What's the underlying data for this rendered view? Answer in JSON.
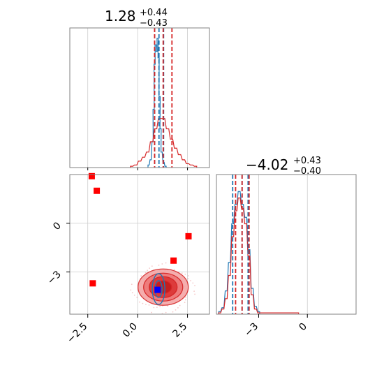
{
  "chart_data": {
    "type": "corner",
    "parameters": [
      "",
      ""
    ],
    "titles": [
      {
        "median": "1.28",
        "plus": "+0.44",
        "minus": "−0.43"
      },
      {
        "median": "−4.02",
        "plus": "+0.43",
        "minus": "−0.40"
      }
    ],
    "x_ticks": {
      "param1": {
        "values": [
          -2.5,
          0.0,
          2.5
        ],
        "labels": [
          "−2.5",
          "0.0",
          "2.5"
        ]
      },
      "param2": {
        "values": [
          -3,
          0
        ],
        "labels": [
          "−3",
          "0"
        ]
      }
    },
    "y_ticks": {
      "param2": {
        "values": [
          0,
          -3
        ],
        "labels": [
          "0",
          "−3"
        ]
      }
    },
    "ranges": {
      "param1": [
        -3.4,
        3.6
      ],
      "param2": [
        -5.6,
        3.0
      ]
    },
    "series": [
      {
        "color": "#1f77b4",
        "median_lines": {
          "param1": [
            0.85,
            1.07,
            1.3
          ],
          "param2": [
            -4.6,
            -4.02,
            -3.65
          ]
        },
        "hist_param1": {
          "x": [
            0.55,
            0.65,
            0.75,
            0.8,
            0.85,
            0.9,
            0.95,
            1.0,
            1.05,
            1.1,
            1.15,
            1.2,
            1.3,
            1.4
          ],
          "y": [
            0.02,
            0.06,
            0.2,
            0.45,
            0.8,
            0.95,
            0.9,
            1.0,
            0.85,
            0.55,
            0.3,
            0.12,
            0.04,
            0.01
          ]
        },
        "hist_param2": {
          "x": [
            -5.4,
            -5.2,
            -5.0,
            -4.8,
            -4.6,
            -4.4,
            -4.2,
            -4.0,
            -3.8,
            -3.6,
            -3.4,
            -3.2,
            -3.0
          ],
          "y": [
            0.02,
            0.05,
            0.18,
            0.4,
            0.7,
            0.85,
            0.95,
            0.85,
            0.75,
            0.5,
            0.2,
            0.06,
            0.02
          ]
        },
        "center": [
          1.05,
          -4.05
        ]
      },
      {
        "color": "#d62728",
        "median_lines": {
          "param1": [
            0.85,
            1.28,
            1.72
          ],
          "param2": [
            -4.42,
            -4.02,
            -3.59
          ]
        },
        "hist_param1": {
          "x": [
            -0.3,
            -0.1,
            0.1,
            0.3,
            0.5,
            0.7,
            0.9,
            1.1,
            1.3,
            1.5,
            1.7,
            1.9,
            2.1,
            2.3,
            2.5,
            2.7,
            2.9
          ],
          "y": [
            0.01,
            0.02,
            0.05,
            0.08,
            0.12,
            0.2,
            0.3,
            0.38,
            0.38,
            0.3,
            0.22,
            0.15,
            0.1,
            0.06,
            0.03,
            0.02,
            0.01
          ]
        },
        "hist_param2": {
          "x": [
            -5.4,
            -5.2,
            -5.0,
            -4.8,
            -4.6,
            -4.4,
            -4.2,
            -4.0,
            -3.8,
            -3.6,
            -3.4,
            -3.2,
            -3.0,
            -1.0,
            -0.6
          ],
          "y": [
            0.01,
            0.04,
            0.12,
            0.3,
            0.6,
            0.8,
            0.9,
            0.82,
            0.7,
            0.45,
            0.15,
            0.04,
            0.01,
            0.01,
            0.01
          ]
        },
        "center": [
          1.28,
          -4.02
        ]
      }
    ],
    "markers": {
      "red_squares": [
        [
          -2.3,
          2.9
        ],
        [
          -2.05,
          2.0
        ],
        [
          2.55,
          -0.8
        ],
        [
          1.8,
          -2.3
        ],
        [
          -2.25,
          -3.7
        ]
      ],
      "blue_square": [
        1.0,
        -4.1
      ]
    }
  }
}
